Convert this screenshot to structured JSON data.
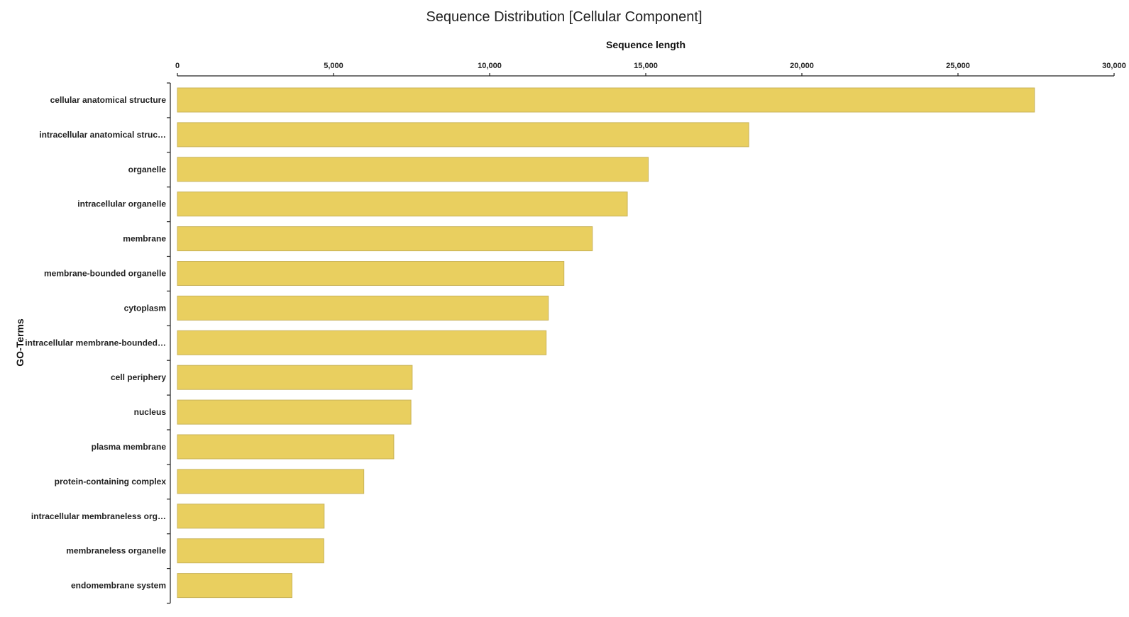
{
  "chart_data": {
    "type": "bar",
    "orientation": "horizontal",
    "title": "Sequence Distribution [Cellular Component]",
    "xlabel": "Sequence length",
    "ylabel": "GO-Terms",
    "xlim": [
      0,
      30000
    ],
    "xticks": [
      0,
      5000,
      10000,
      15000,
      20000,
      25000,
      30000
    ],
    "xtick_labels": [
      "0",
      "5,000",
      "10,000",
      "15,000",
      "20,000",
      "25,000",
      "30,000"
    ],
    "x_axis_position": "top",
    "bar_color": "#e9cf5f",
    "categories": [
      "cellular anatomical structure",
      "intracellular anatomical struc…",
      "organelle",
      "intracellular organelle",
      "membrane",
      "membrane-bounded organelle",
      "cytoplasm",
      "intracellular membrane-bounded…",
      "cell periphery",
      "nucleus",
      "plasma membrane",
      "protein-containing complex",
      "intracellular membraneless org…",
      "membraneless organelle",
      "endomembrane system"
    ],
    "values": [
      27450,
      18300,
      15080,
      14410,
      13290,
      12380,
      11880,
      11810,
      7520,
      7480,
      6930,
      5970,
      4700,
      4690,
      3670
    ]
  }
}
